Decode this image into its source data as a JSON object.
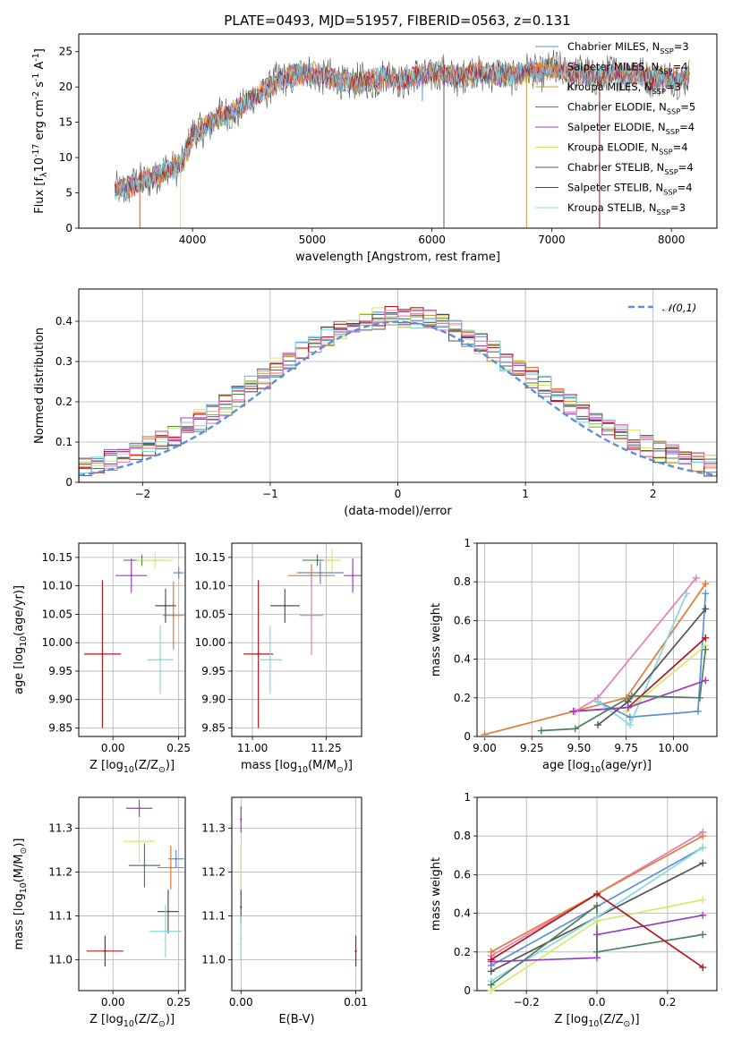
{
  "title": "PLATE=0493, MJD=51957, FIBERID=0563, z=0.131",
  "colors": {
    "Chabrier MILES": "#5b8fd6",
    "Salpeter MILES": "#e07b39",
    "Kroupa MILES": "#c99a3a",
    "Chabrier ELODIE": "#4f7f5a",
    "Salpeter ELODIE": "#9b3fbf",
    "Kroupa ELODIE": "#d8e86a",
    "Chabrier STELIB": "#555555",
    "Salpeter STELIB": "#b0191e",
    "Kroupa STELIB": "#86d8e0",
    "pink": "#e57cbe",
    "gaussian": "#5b8fd6"
  },
  "chart_data": [
    {
      "type": "line",
      "title": "PLATE=0493, MJD=51957, FIBERID=0563, z=0.131",
      "xlabel": "wavelength [Angstrom, rest frame]",
      "ylabel": "Flux [f$_\\lambda$10$^{-17}$ erg cm$^{-2}$ s$^{-1}$ A$^{-1}$]",
      "xlim": [
        3050,
        8380
      ],
      "ylim": [
        0,
        27.5
      ],
      "xticks": [
        4000,
        5000,
        6000,
        7000,
        8000
      ],
      "yticks": [
        0,
        5,
        10,
        15,
        20,
        25
      ],
      "legend_position": "right",
      "series": [
        {
          "name": "Chabrier MILES, N$_{SSP}$=3"
        },
        {
          "name": "Salpeter MILES, N$_{SSP}$=4"
        },
        {
          "name": "Kroupa MILES, N$_{SSP}$=3"
        },
        {
          "name": "Chabrier ELODIE, N$_{SSP}$=5"
        },
        {
          "name": "Salpeter ELODIE, N$_{SSP}$=4"
        },
        {
          "name": "Kroupa ELODIE, N$_{SSP}$=4"
        },
        {
          "name": "Chabrier STELIB, N$_{SSP}$=4"
        },
        {
          "name": "Salpeter STELIB, N$_{SSP}$=4"
        },
        {
          "name": "Kroupa STELIB, N$_{SSP}$=3"
        }
      ],
      "continuum": {
        "x": [
          3350,
          3500,
          3700,
          3900,
          4000,
          4200,
          4400,
          4600,
          4800,
          5000,
          5200,
          5400,
          5600,
          5800,
          6000,
          6200,
          6400,
          6600,
          6800,
          7000,
          7200,
          7400,
          7600,
          7800,
          8000,
          8150
        ],
        "y": [
          5.5,
          6,
          7.5,
          9,
          13,
          15.5,
          17,
          19.5,
          21.5,
          22,
          21,
          20.5,
          21.5,
          21,
          22,
          21.5,
          22,
          21.5,
          22,
          22.5,
          22,
          21.5,
          22,
          21.5,
          21,
          21.5
        ]
      },
      "dropouts": [
        {
          "x": 3560,
          "y": 0
        },
        {
          "x": 3900,
          "y": 0
        },
        {
          "x": 5920,
          "y": 18
        },
        {
          "x": 6100,
          "y": 0
        },
        {
          "x": 6790,
          "y": 0
        },
        {
          "x": 7400,
          "y": 0
        }
      ]
    },
    {
      "type": "histogram",
      "xlabel": "(data-model)/error",
      "ylabel": "Normed distribution",
      "xlim": [
        -2.5,
        2.5
      ],
      "ylim": [
        0,
        0.48
      ],
      "xticks": [
        -2,
        -1,
        0,
        1,
        2
      ],
      "yticks": [
        0,
        0.1,
        0.2,
        0.3,
        0.4
      ],
      "legend_position": "top-right",
      "gaussian_label": "$\\mathcal{N}(0,1)$",
      "bin_width": 0.1
    },
    {
      "type": "scatter",
      "xlabel": "Z [log$_{10}$(Z/Z$_\\odot$)]",
      "ylabel": "age  [log$_{10}$(age/yr)]",
      "xlim": [
        -0.13,
        0.275
      ],
      "ylim": [
        9.835,
        10.175
      ],
      "xticks": [
        0.0,
        0.25
      ],
      "xtick_labels": [
        "0.00",
        "0.25"
      ],
      "yticks": [
        9.85,
        9.9,
        9.95,
        10.0,
        10.05,
        10.1,
        10.15
      ],
      "yticklabels": [
        "9.85",
        "9.90",
        "9.95",
        "10.00",
        "10.05",
        "10.10",
        "10.15"
      ],
      "points": [
        {
          "model": "Chabrier MILES",
          "x": 0.25,
          "xerr": 0.02,
          "y": 10.123,
          "yerr": 0.01
        },
        {
          "model": "Salpeter MILES",
          "x": 0.23,
          "xerr": 0.04,
          "y": 10.048,
          "yerr": 0.06
        },
        {
          "model": "Chabrier ELODIE",
          "x": 0.11,
          "xerr": 0.07,
          "y": 10.145,
          "yerr": 0.01
        },
        {
          "model": "Salpeter ELODIE",
          "x": 0.07,
          "xerr": 0.06,
          "y": 10.118,
          "yerr": 0.03
        },
        {
          "model": "Kroupa ELODIE",
          "x": 0.16,
          "xerr": 0.07,
          "y": 10.145,
          "yerr": 0.015
        },
        {
          "model": "Chabrier STELIB",
          "x": 0.2,
          "xerr": 0.04,
          "y": 10.065,
          "yerr": 0.03
        },
        {
          "model": "Salpeter STELIB",
          "x": -0.04,
          "xerr": 0.07,
          "y": 9.98,
          "yerr": 0.13
        },
        {
          "model": "Kroupa STELIB",
          "x": 0.18,
          "xerr": 0.05,
          "y": 9.97,
          "yerr": 0.06
        }
      ]
    },
    {
      "type": "scatter",
      "xlabel": "mass [log$_{10}$(M/M$_\\odot$)]",
      "ylabel": "",
      "xlim": [
        10.93,
        11.37
      ],
      "ylim": [
        9.835,
        10.175
      ],
      "xticks": [
        11.0,
        11.25
      ],
      "xtick_labels": [
        "11.00",
        "11.25"
      ],
      "yticks": [
        9.85,
        9.9,
        9.95,
        10.0,
        10.05,
        10.1,
        10.15
      ],
      "yticklabels": [
        "9.85",
        "9.90",
        "9.95",
        "10.00",
        "10.05",
        "10.10",
        "10.15"
      ],
      "points": [
        {
          "model": "Chabrier MILES",
          "x": 11.23,
          "xerr": 0.08,
          "y": 10.123,
          "yerr": 0.02
        },
        {
          "model": "Salpeter MILES",
          "x": 11.2,
          "xerr": 0.08,
          "y": 10.118,
          "yerr": 0.02
        },
        {
          "model": "Chabrier ELODIE",
          "x": 11.22,
          "xerr": 0.05,
          "y": 10.145,
          "yerr": 0.01
        },
        {
          "model": "Salpeter ELODIE",
          "x": 11.34,
          "xerr": 0.03,
          "y": 10.118,
          "yerr": 0.03
        },
        {
          "model": "Kroupa ELODIE",
          "x": 11.27,
          "xerr": 0.03,
          "y": 10.145,
          "yerr": 0.02
        },
        {
          "model": "Chabrier STELIB",
          "x": 11.11,
          "xerr": 0.05,
          "y": 10.065,
          "yerr": 0.03
        },
        {
          "model": "Salpeter STELIB",
          "x": 11.02,
          "xerr": 0.05,
          "y": 9.98,
          "yerr": 0.13
        },
        {
          "model": "Kroupa STELIB",
          "x": 11.06,
          "xerr": 0.04,
          "y": 9.97,
          "yerr": 0.06
        },
        {
          "model": "pink",
          "x": 11.2,
          "xerr": 0.04,
          "y": 10.048,
          "yerr": 0.07
        }
      ]
    },
    {
      "type": "line",
      "xlabel": "age  [log$_{10}$(age/yr)]",
      "ylabel": "mass weight",
      "xlim": [
        8.96,
        10.23
      ],
      "ylim": [
        0,
        1.0
      ],
      "xticks": [
        9.0,
        9.25,
        9.5,
        9.75,
        10.0
      ],
      "xtick_labels": [
        "9.00",
        "9.25",
        "9.50",
        "9.75",
        "10.00"
      ],
      "yticks": [
        0,
        0.2,
        0.4,
        0.6,
        0.8,
        1.0
      ],
      "series": [
        {
          "model": "Salpeter MILES",
          "x": [
            9.0,
            9.75,
            10.17
          ],
          "y": [
            0.01,
            0.2,
            0.79
          ]
        },
        {
          "model": "Chabrier MILES",
          "x": [
            9.6,
            9.77,
            10.13,
            10.17
          ],
          "y": [
            0.18,
            0.1,
            0.13,
            0.74
          ]
        },
        {
          "model": "pink",
          "x": [
            9.48,
            9.6,
            10.12
          ],
          "y": [
            0.13,
            0.2,
            0.82
          ]
        },
        {
          "model": "Kroupa STELIB",
          "x": [
            9.6,
            9.77,
            10.07
          ],
          "y": [
            0.18,
            0.06,
            0.74
          ]
        },
        {
          "model": "Chabrier STELIB",
          "x": [
            9.6,
            9.76,
            10.17
          ],
          "y": [
            0.06,
            0.18,
            0.66
          ]
        },
        {
          "model": "Salpeter STELIB",
          "x": [
            9.47,
            9.76,
            10.17
          ],
          "y": [
            0.13,
            0.15,
            0.51
          ]
        },
        {
          "model": "Kroupa ELODIE",
          "x": [
            9.75,
            10.17
          ],
          "y": [
            0.13,
            0.47
          ]
        },
        {
          "model": "Salpeter ELODIE",
          "x": [
            9.47,
            9.76,
            10.17
          ],
          "y": [
            0.13,
            0.15,
            0.29
          ]
        },
        {
          "model": "Chabrier ELODIE",
          "x": [
            9.3,
            9.48,
            9.78,
            10.14,
            10.17
          ],
          "y": [
            0.03,
            0.04,
            0.21,
            0.2,
            0.45
          ]
        }
      ]
    },
    {
      "type": "scatter",
      "xlabel": "Z [log$_{10}$(Z/Z$_\\odot$)]",
      "ylabel": "mass [log$_{10}$(M/M$_\\odot$)]",
      "xlim": [
        -0.13,
        0.275
      ],
      "ylim": [
        10.93,
        11.37
      ],
      "xticks": [
        0.0,
        0.25
      ],
      "xtick_labels": [
        "0.00",
        "0.25"
      ],
      "yticks": [
        11.0,
        11.1,
        11.2,
        11.3
      ],
      "yticklabels": [
        "11.0",
        "11.1",
        "11.2",
        "11.3"
      ],
      "points": [
        {
          "model": "Salpeter ELODIE",
          "x": 0.1,
          "xerr": 0.05,
          "y": 11.345,
          "yerr": 0.02
        },
        {
          "model": "Kroupa ELODIE",
          "x": 0.1,
          "xerr": 0.06,
          "y": 11.27,
          "yerr": 0.05
        },
        {
          "model": "Chabrier MILES",
          "x": 0.24,
          "xerr": 0.03,
          "y": 11.23,
          "yerr": 0.02
        },
        {
          "model": "Salpeter MILES",
          "x": 0.22,
          "xerr": 0.05,
          "y": 11.21,
          "yerr": 0.05
        },
        {
          "model": "Chabrier ELODIE",
          "x": 0.12,
          "xerr": 0.06,
          "y": 11.215,
          "yerr": 0.05
        },
        {
          "model": "Chabrier STELIB",
          "x": 0.21,
          "xerr": 0.04,
          "y": 11.11,
          "yerr": 0.05
        },
        {
          "model": "Kroupa STELIB",
          "x": 0.2,
          "xerr": 0.06,
          "y": 11.065,
          "yerr": 0.06
        },
        {
          "model": "Salpeter STELIB",
          "x": -0.03,
          "xerr": 0.07,
          "y": 11.02,
          "yerr": 0.035
        }
      ]
    },
    {
      "type": "scatter",
      "xlabel": "E(B-V)",
      "ylabel": "",
      "xlim": [
        -0.0008,
        0.0105
      ],
      "ylim": [
        10.93,
        11.37
      ],
      "xticks": [
        0.0,
        0.01
      ],
      "xtick_labels": [
        "0.00",
        "0.01"
      ],
      "yticks": [
        11.0,
        11.1,
        11.2,
        11.3
      ],
      "yticklabels": [
        "11.0",
        "11.1",
        "11.2",
        "11.3"
      ],
      "points": [
        {
          "model": "Salpeter ELODIE",
          "x": 0.0,
          "y": 11.32,
          "yerr": 0.03
        },
        {
          "model": "Kroupa ELODIE",
          "x": 0.0,
          "y": 11.21,
          "yerr": 0.05
        },
        {
          "model": "Chabrier STELIB",
          "x": 0.0,
          "y": 11.12,
          "yerr": 0.04
        },
        {
          "model": "Kroupa STELIB",
          "x": 0.0,
          "y": 11.05,
          "yerr": 0.05
        },
        {
          "model": "Salpeter STELIB",
          "x": 0.01,
          "y": 11.02,
          "yerr": 0.035
        }
      ]
    },
    {
      "type": "line",
      "xlabel": "Z [log$_{10}$(Z/Z$_\\odot$)]",
      "ylabel": "mass weight",
      "xlim": [
        -0.34,
        0.34
      ],
      "ylim": [
        0,
        1.0
      ],
      "xticks": [
        -0.2,
        0.0,
        0.2
      ],
      "xtick_labels": [
        "−0.2",
        "0.0",
        "0.2"
      ],
      "yticks": [
        0,
        0.2,
        0.4,
        0.6,
        0.8,
        1.0
      ],
      "series": [
        {
          "model": "pink",
          "x": [
            -0.3,
            0.3
          ],
          "y": [
            0.18,
            0.82
          ]
        },
        {
          "model": "Salpeter MILES",
          "x": [
            -0.3,
            0.3
          ],
          "y": [
            0.2,
            0.8
          ]
        },
        {
          "model": "Chabrier MILES",
          "x": [
            -0.3,
            0.3
          ],
          "y": [
            0.13,
            0.74
          ]
        },
        {
          "model": "Chabrier STELIB",
          "x": [
            -0.3,
            0.3
          ],
          "y": [
            0.1,
            0.66
          ]
        },
        {
          "model": "Kroupa STELIB",
          "x": [
            -0.3,
            0.0,
            0.3
          ],
          "y": [
            0.05,
            0.38,
            0.74
          ]
        },
        {
          "model": "Kroupa ELODIE",
          "x": [
            -0.3,
            0.0,
            0.3
          ],
          "y": [
            0.0,
            0.36,
            0.47
          ]
        },
        {
          "model": "Salpeter ELODIE",
          "x": [
            -0.3,
            0.0,
            0.0,
            0.3
          ],
          "y": [
            0.15,
            0.17,
            0.29,
            0.39
          ]
        },
        {
          "model": "Chabrier ELODIE",
          "x": [
            -0.3,
            0.0,
            0.0,
            0.3
          ],
          "y": [
            0.03,
            0.44,
            0.2,
            0.29
          ]
        },
        {
          "model": "Salpeter STELIB",
          "x": [
            -0.3,
            0.0,
            0.3
          ],
          "y": [
            0.16,
            0.5,
            0.12
          ]
        }
      ]
    }
  ]
}
